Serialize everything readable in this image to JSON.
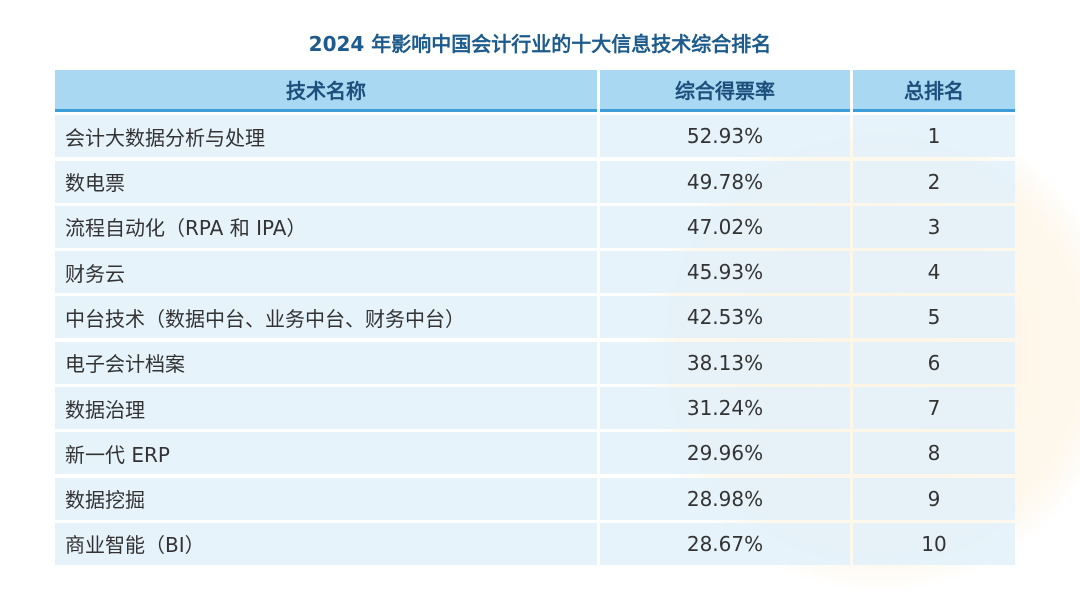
{
  "title": "2024 年影响中国会计行业的十大信息技术综合排名",
  "table": {
    "header": [
      "技术名称",
      "综合得票率",
      "总排名"
    ],
    "rows": [
      [
        "会计大数据分析与处理",
        "52.93%",
        "1"
      ],
      [
        "数电票",
        "49.78%",
        "2"
      ],
      [
        "流程自动化（RPA 和 IPA）",
        "47.02%",
        "3"
      ],
      [
        "财务云",
        "45.93%",
        "4"
      ],
      [
        "中台技术（数据中台、业务中台、财务中台）",
        "42.53%",
        "5"
      ],
      [
        "电子会计档案",
        "38.13%",
        "6"
      ],
      [
        "数据治理",
        "31.24%",
        "7"
      ],
      [
        "新一代 ERP",
        "29.96%",
        "8"
      ],
      [
        "数据挖掘",
        "28.98%",
        "9"
      ],
      [
        "商业智能（BI）",
        "28.67%",
        "10"
      ]
    ]
  }
}
